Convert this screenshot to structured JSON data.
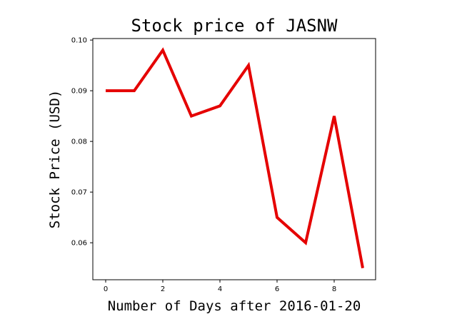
{
  "chart_data": {
    "type": "line",
    "title": "Stock price of JASNW",
    "xlabel": "Number of Days after 2016-01-20",
    "ylabel": "Stock Price (USD)",
    "x": [
      0,
      1,
      2,
      3,
      4,
      5,
      6,
      7,
      8,
      9
    ],
    "series": [
      {
        "values": [
          0.09,
          0.09,
          0.098,
          0.085,
          0.087,
          0.095,
          0.065,
          0.06,
          0.085,
          0.055
        ],
        "color": "#e50000"
      }
    ],
    "xlim": [
      -0.45,
      9.45
    ],
    "ylim": [
      0.0527,
      0.1003
    ],
    "xticks": [
      0,
      2,
      4,
      6,
      8
    ],
    "xtick_labels": [
      "0",
      "2",
      "4",
      "6",
      "8"
    ],
    "yticks": [
      0.06,
      0.07,
      0.08,
      0.09,
      0.1
    ],
    "ytick_labels": [
      "0.06",
      "0.07",
      "0.08",
      "0.09",
      "0.10"
    ],
    "grid": false
  }
}
